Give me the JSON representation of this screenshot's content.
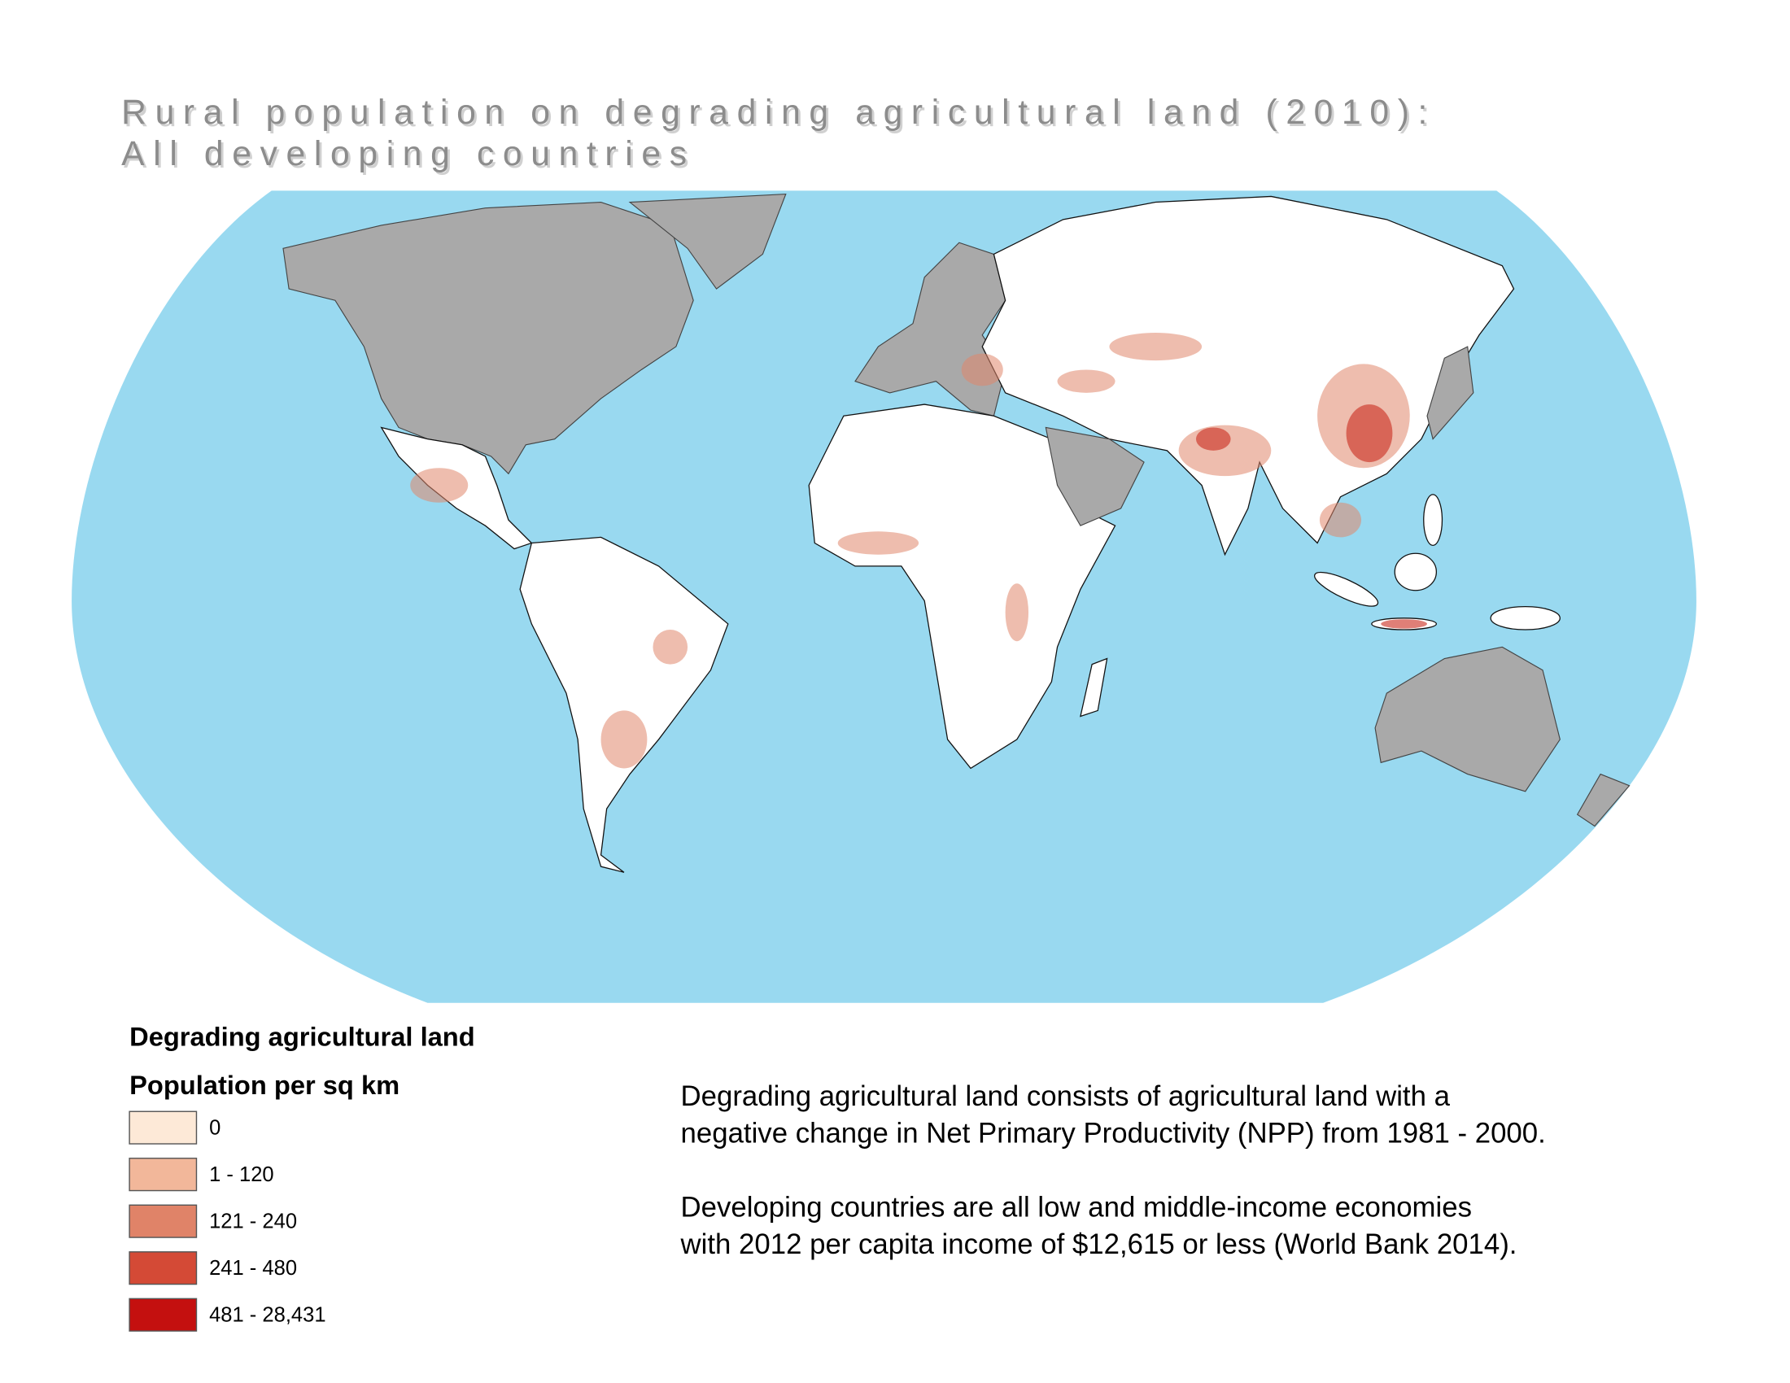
{
  "title": {
    "lines": [
      "Rural population on degrading agricultural land (2010):",
      "All developing countries"
    ]
  },
  "legend": {
    "title": "Degrading agricultural land",
    "subtitle": "Population per sq km",
    "items": [
      {
        "label": "0",
        "color": "#fde9d7"
      },
      {
        "label": "1 - 120",
        "color": "#f2b79a"
      },
      {
        "label": "121 - 240",
        "color": "#e08368"
      },
      {
        "label": "241 - 480",
        "color": "#d44a36"
      },
      {
        "label": "481 - 28,431",
        "color": "#c4100f"
      }
    ]
  },
  "notes": [
    [
      "Degrading agricultural land consists of agricultural land with a",
      "negative change in Net Primary Productivity (NPP) from 1981 - 2000."
    ],
    [
      "Developing countries are all low and middle-income economies",
      "with 2012 per capita income of $12,615 or less (World Bank 2014)."
    ]
  ]
}
